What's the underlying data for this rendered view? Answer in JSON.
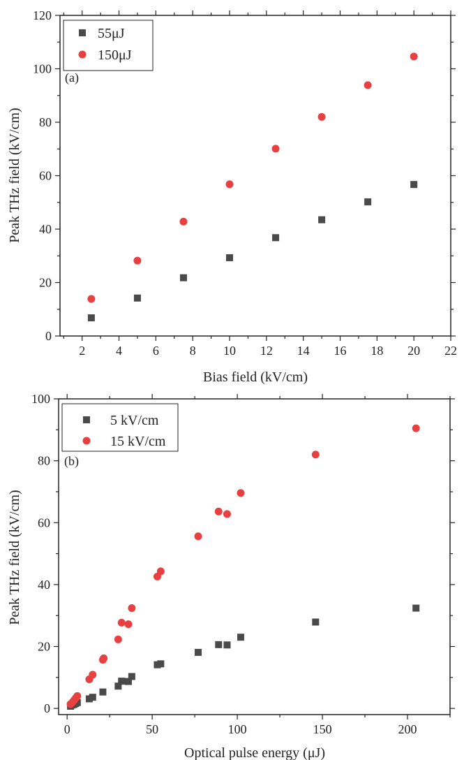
{
  "colors": {
    "series_dark": "#4a4a4a",
    "series_red": "#e84040",
    "axis": "#222222"
  },
  "chart_data": [
    {
      "type": "scatter",
      "panel_label": "(a)",
      "xlabel": "Bias field (kV/cm)",
      "ylabel": "Peak THz field (kV/cm)",
      "xlim": [
        0.8,
        22
      ],
      "ylim": [
        0,
        120
      ],
      "xticks": [
        2,
        4,
        6,
        8,
        10,
        12,
        14,
        16,
        18,
        20,
        22
      ],
      "yticks": [
        0,
        20,
        40,
        60,
        80,
        100,
        120
      ],
      "grid": false,
      "legend_position": "top-left",
      "series": [
        {
          "name": "55μJ",
          "marker": "square",
          "color": "#4a4a4a",
          "x": [
            2.5,
            5,
            7.5,
            10,
            12.5,
            15,
            17.5,
            20
          ],
          "y": [
            6.8,
            14.2,
            21.8,
            29.3,
            36.8,
            43.5,
            50.2,
            56.7
          ]
        },
        {
          "name": "150μJ",
          "marker": "circle",
          "color": "#e84040",
          "x": [
            2.5,
            5,
            7.5,
            10,
            12.5,
            15,
            17.5,
            20
          ],
          "y": [
            13.9,
            28.2,
            42.8,
            56.8,
            70.1,
            82.0,
            93.9,
            104.6
          ]
        }
      ]
    },
    {
      "type": "scatter",
      "panel_label": "(b)",
      "xlabel": "Optical pulse energy (μJ)",
      "ylabel": "Peak THz field (kV/cm)",
      "xlim": [
        -5,
        225
      ],
      "ylim": [
        -2,
        100
      ],
      "xticks": [
        0,
        50,
        100,
        150,
        200
      ],
      "yticks": [
        0,
        20,
        40,
        60,
        80,
        100
      ],
      "grid": false,
      "legend_position": "top-left",
      "series": [
        {
          "name": "5 kV/cm",
          "marker": "square",
          "color": "#4a4a4a",
          "x": [
            2,
            3,
            4,
            5,
            6,
            13,
            15,
            21,
            30,
            32,
            36,
            38,
            53,
            55,
            77,
            89,
            94,
            102,
            146,
            205
          ],
          "y": [
            0.7,
            1.1,
            1.3,
            1.6,
            1.9,
            3.1,
            3.6,
            5.3,
            7.2,
            8.8,
            8.7,
            10.3,
            14.1,
            14.4,
            18.1,
            20.6,
            20.5,
            23.0,
            27.9,
            32.4
          ]
        },
        {
          "name": "15 kV/cm",
          "marker": "circle",
          "color": "#e84040",
          "x": [
            2,
            3,
            4,
            5,
            6,
            13,
            15,
            21,
            21.5,
            30,
            32,
            36,
            38,
            53,
            55,
            77,
            89,
            94,
            102,
            146,
            205
          ],
          "y": [
            1.4,
            1.9,
            2.6,
            3.3,
            4.0,
            9.4,
            10.9,
            15.7,
            16.2,
            22.3,
            27.7,
            27.2,
            32.4,
            42.6,
            44.3,
            55.6,
            63.6,
            62.8,
            69.6,
            82.0,
            90.5
          ]
        }
      ]
    }
  ]
}
